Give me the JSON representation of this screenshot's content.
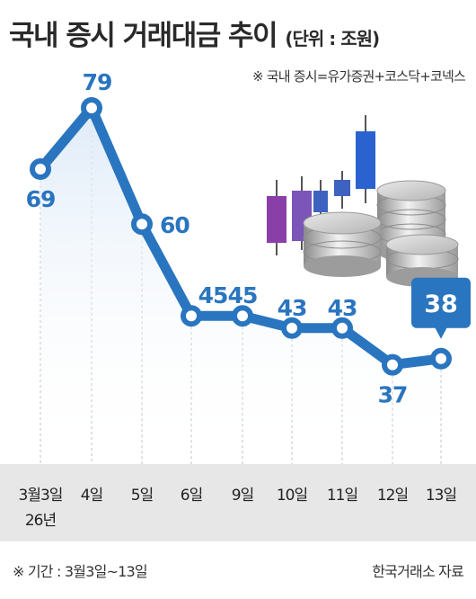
{
  "header": {
    "title": "국내 증시 거래대금 추이",
    "unit": "(단위 : 조원)",
    "note": "※ 국내 증시=유가증권+코스닥+코넥스"
  },
  "footer": {
    "period": "※ 기간 : 3월3일~13일",
    "source": "한국거래소 자료"
  },
  "colors": {
    "line": "#2a75bf",
    "marker_fill": "#ffffff",
    "axis_band": "#e7e7e7",
    "highlight_box": "#2a75bf"
  },
  "chart_data": {
    "type": "line",
    "categories": [
      "3월3일\n26년",
      "4일",
      "5일",
      "6일",
      "9일",
      "10일",
      "11일",
      "12일",
      "13일"
    ],
    "values": [
      69,
      79,
      60,
      45,
      45,
      43,
      43,
      37,
      38
    ],
    "labels": [
      "69",
      "79",
      "60",
      "45",
      "45",
      "43",
      "43",
      "37",
      "38"
    ],
    "highlight_index": 8,
    "grid": "vertical-dashed",
    "decoration": "candlestick-and-coins-illustration"
  }
}
